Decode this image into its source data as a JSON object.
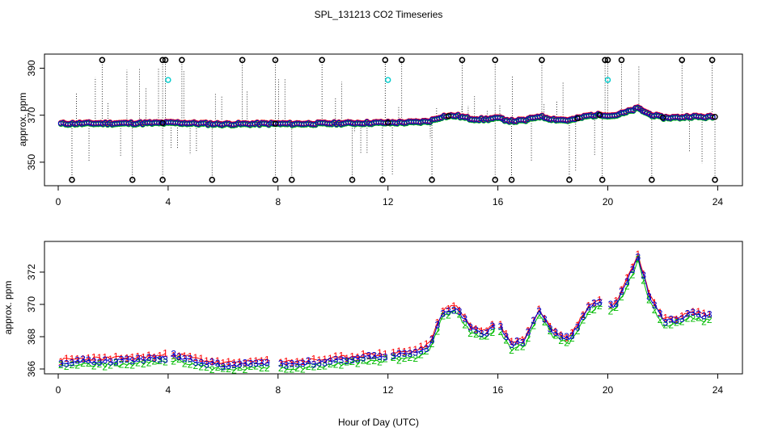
{
  "title": "SPL_131213  CO2 Timeseries",
  "xlabel": "Hour of Day (UTC)",
  "colors": {
    "series1": "#ff0000",
    "series2": "#00bb00",
    "series3": "#0000cc",
    "outlier": "#000000",
    "cyan": "#00cccc"
  },
  "chart_data": [
    {
      "type": "scatter",
      "panel": "top",
      "ylabel": "approx. ppm",
      "xlim": [
        -0.5,
        24.9
      ],
      "ylim": [
        340,
        396
      ],
      "xticks": [
        0,
        4,
        8,
        12,
        16,
        20,
        24
      ],
      "yticks": [
        350,
        370,
        390
      ],
      "baseline": [
        [
          0.1,
          366.4
        ],
        [
          1,
          366.5
        ],
        [
          2,
          366.5
        ],
        [
          3,
          366.6
        ],
        [
          3.9,
          366.7
        ],
        [
          4.2,
          366.8
        ],
        [
          5,
          366.5
        ],
        [
          6,
          366.2
        ],
        [
          7,
          366.3
        ],
        [
          7.8,
          366.4
        ],
        [
          8.5,
          366.3
        ],
        [
          10,
          366.5
        ],
        [
          11,
          366.7
        ],
        [
          12,
          366.8
        ],
        [
          13,
          367.0
        ],
        [
          13.5,
          367.4
        ],
        [
          14,
          369.5
        ],
        [
          14.5,
          369.8
        ],
        [
          15,
          368.5
        ],
        [
          15.5,
          368.2
        ],
        [
          16,
          368.8
        ],
        [
          16.5,
          367.5
        ],
        [
          17,
          367.8
        ],
        [
          17.5,
          369.6
        ],
        [
          18,
          368.3
        ],
        [
          18.6,
          367.8
        ],
        [
          19.3,
          369.8
        ],
        [
          19.8,
          370.2
        ],
        [
          20.2,
          369.8
        ],
        [
          20.6,
          371.0
        ],
        [
          21.1,
          373.0
        ],
        [
          21.5,
          370.5
        ],
        [
          22,
          369.0
        ],
        [
          22.6,
          369.0
        ],
        [
          23,
          369.5
        ],
        [
          23.5,
          369.2
        ],
        [
          23.8,
          369.3
        ]
      ],
      "high_outliers": [
        1.6,
        3.8,
        3.9,
        4.5,
        6.7,
        7.9,
        9.6,
        11.9,
        12.5,
        14.7,
        15.9,
        17.6,
        19.9,
        20.0,
        20.5,
        22.7,
        23.8
      ],
      "low_outliers": [
        0.5,
        2.7,
        3.8,
        5.6,
        7.9,
        8.5,
        10.7,
        11.8,
        13.6,
        15.9,
        16.5,
        18.6,
        19.8,
        21.6,
        23.9
      ],
      "cyan_points": [
        [
          4.0,
          385
        ],
        [
          12.0,
          385
        ],
        [
          20.0,
          385
        ]
      ]
    },
    {
      "type": "line",
      "panel": "bottom",
      "ylabel": "approx. ppm",
      "xlim": [
        -0.5,
        24.9
      ],
      "ylim": [
        365.7,
        373.9
      ],
      "xticks": [
        0,
        4,
        8,
        12,
        16,
        20,
        24
      ],
      "yticks": [
        366,
        368,
        370,
        372
      ],
      "series": [
        {
          "name": "1",
          "offset": 0.15
        },
        {
          "name": "2",
          "offset": -0.25
        },
        {
          "name": "3",
          "offset": 0.0
        }
      ],
      "gaps": [
        [
          3.95,
          4.05
        ],
        [
          7.75,
          8.05
        ],
        [
          11.95,
          12.05
        ],
        [
          15.95,
          16.05
        ],
        [
          19.85,
          20.05
        ]
      ]
    }
  ]
}
